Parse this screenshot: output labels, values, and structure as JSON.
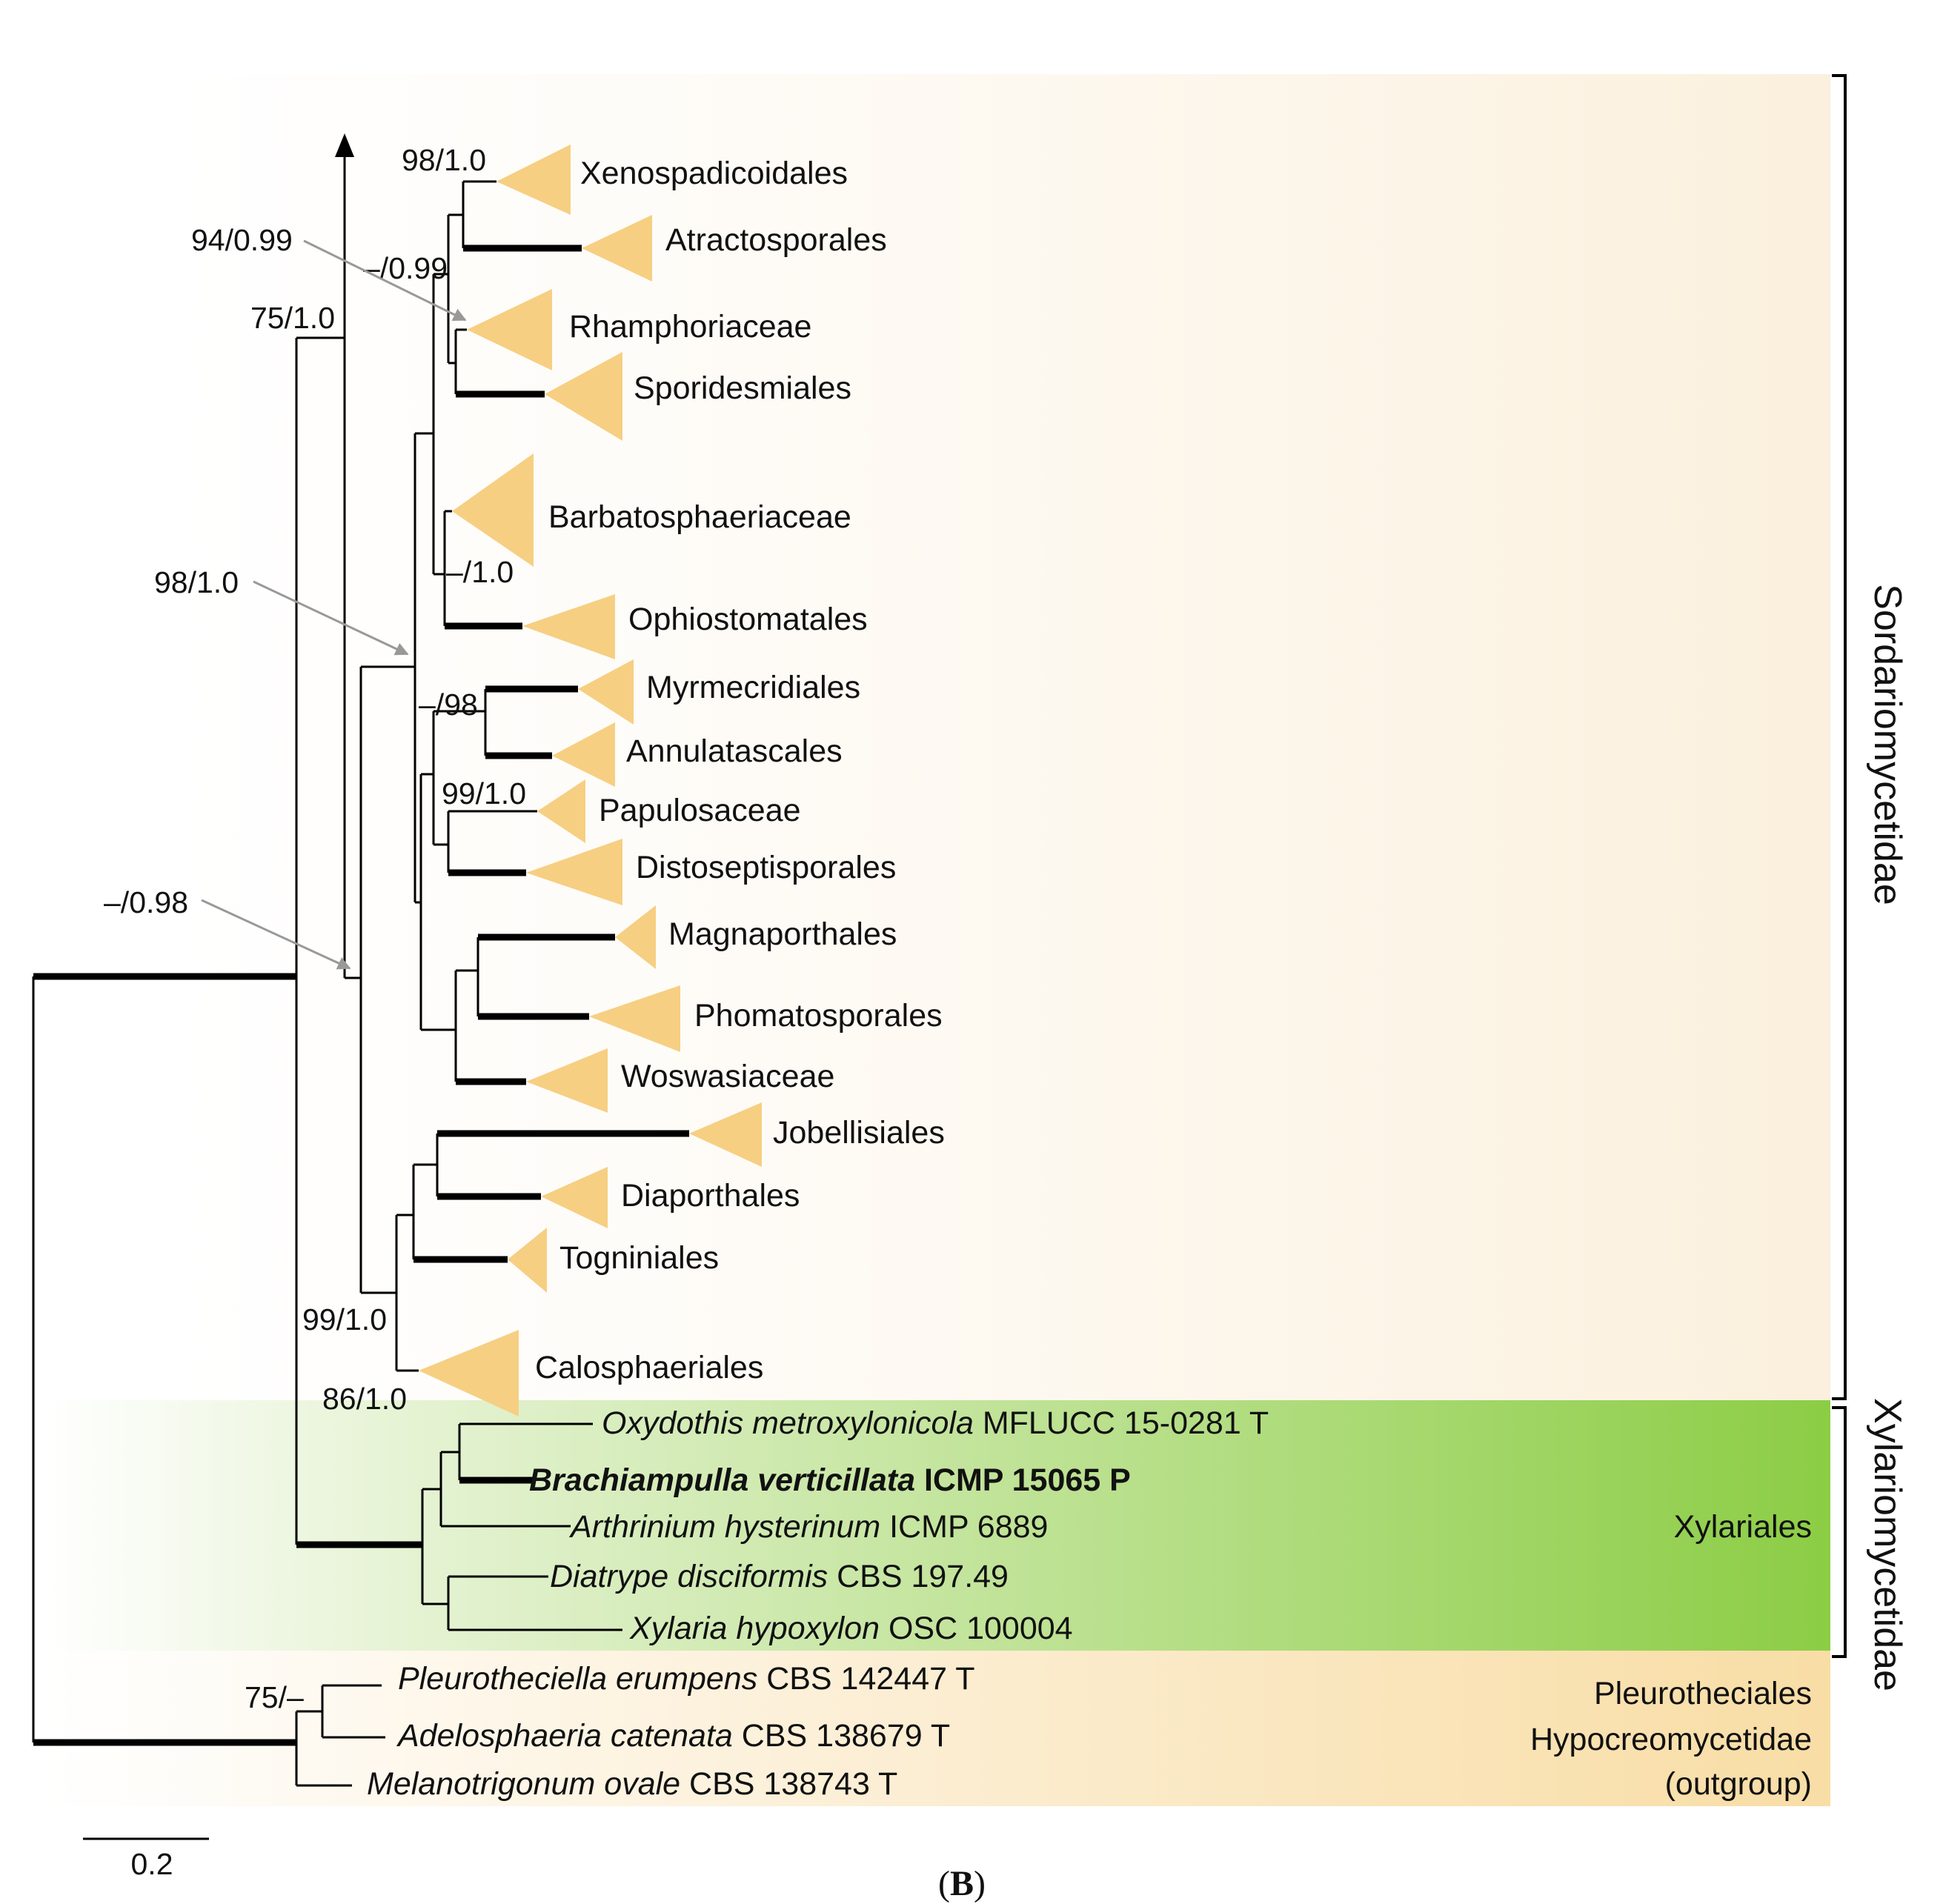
{
  "panel_label": "B",
  "scale_bar_label": "0.2",
  "subclasses": {
    "sordario": "Sordariomycetidae",
    "xylario": "Xylariomycetidae"
  },
  "outgroup_labels": {
    "order": "Pleurotheciales",
    "subclass": "Hypocreomycetidae",
    "note": "(outgroup)"
  },
  "xylariales_label": "Xylariales",
  "clades": [
    "Xenospadicoidales",
    "Atractosporales",
    "Rhamphoriaceae",
    "Sporidesmiales",
    "Barbatosphaeriaceae",
    "Ophiostomatales",
    "Myrmecridiales",
    "Annulatascales",
    "Papulosaceae",
    "Distoseptisporales",
    "Magnaporthales",
    "Phomatosporales",
    "Woswasiaceae",
    "Jobellisiales",
    "Diaporthales",
    "Togniniales",
    "Calosphaeriales"
  ],
  "taxa": [
    {
      "genus_species": "Oxydothis metroxylonicola",
      "voucher": "MFLUCC 15-0281 T"
    },
    {
      "genus_species": "Brachiampulla verticillata",
      "voucher": "ICMP 15065 P"
    },
    {
      "genus_species": "Arthrinium hysterinum",
      "voucher": "ICMP 6889"
    },
    {
      "genus_species": "Diatrype disciformis",
      "voucher": "CBS 197.49"
    },
    {
      "genus_species": "Xylaria hypoxylon",
      "voucher": "OSC 100004"
    },
    {
      "genus_species": "Pleurotheciella erumpens",
      "voucher": "CBS 142447 T"
    },
    {
      "genus_species": "Adelosphaeria catenata",
      "voucher": "CBS 138679 T"
    },
    {
      "genus_species": "Melanotrigonum ovale",
      "voucher": "CBS 138743 T"
    }
  ],
  "support": {
    "s1": "98/1.0",
    "s2": "94/0.99",
    "s3": "–/0.99",
    "s4": "75/1.0",
    "s5": "–/1.0",
    "s6": "98/1.0",
    "s7": "–/98",
    "s8": "99/1.0",
    "s9": "–/0.98",
    "s10": "99/1.0",
    "s11": "86/1.0",
    "s12": "75/–"
  },
  "colors": {
    "clade_triangle": "#f6cf82",
    "xylariales_green": "#8fcf4a",
    "outgroup_tan": "#f8dfa8",
    "sordario_bg": "#fdf6ea"
  }
}
